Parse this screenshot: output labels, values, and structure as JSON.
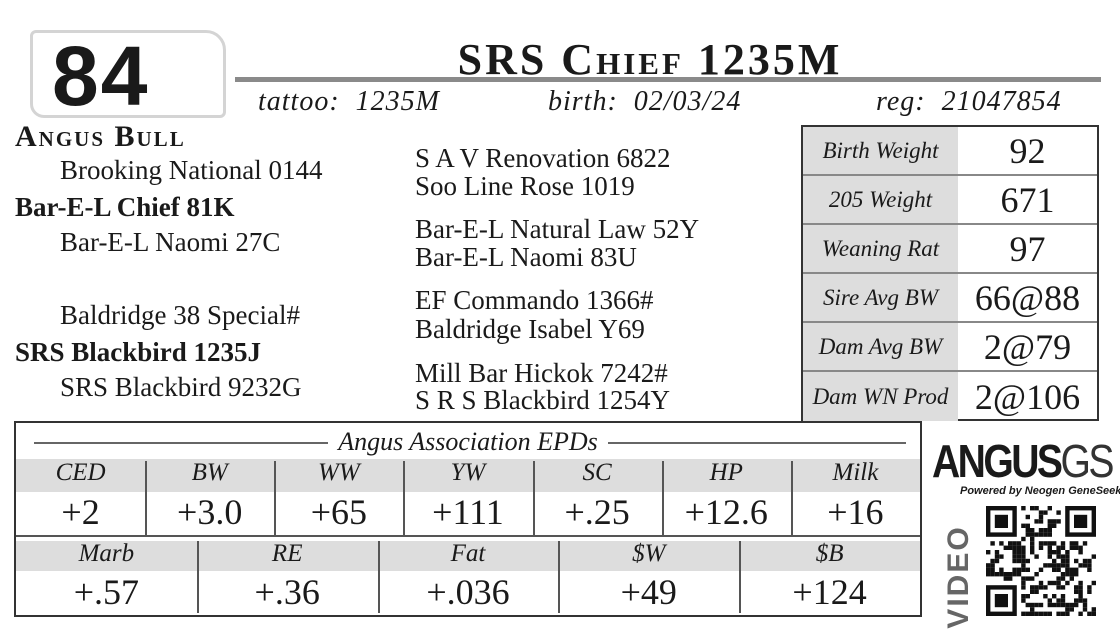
{
  "lot": "84",
  "title": "SRS Chief 1235M",
  "tattoo": {
    "label": "tattoo:",
    "value": "1235M"
  },
  "birth": {
    "label": "birth:",
    "value": "02/03/24"
  },
  "reg": {
    "label": "reg:",
    "value": "21047854"
  },
  "kind": "Angus Bull",
  "pedigree": {
    "sire_side": [
      "Brooking National 0144",
      "Bar-E-L Chief 81K",
      "Bar-E-L Naomi 27C"
    ],
    "dam_side": [
      "Baldridge 38 Special#",
      "SRS Blackbird 1235J",
      "SRS Blackbird 9232G"
    ],
    "ancestors": [
      "S A V Renovation 6822",
      "Soo Line Rose 1019",
      "Bar-E-L Natural Law 52Y",
      "Bar-E-L Naomi 83U",
      "EF Commando 1366#",
      "Baldridge Isabel Y69",
      "Mill Bar Hickok 7242#",
      "S R S Blackbird 1254Y"
    ]
  },
  "stats": [
    {
      "label": "Birth Weight",
      "value": "92"
    },
    {
      "label": "205 Weight",
      "value": "671"
    },
    {
      "label": "Weaning Rat",
      "value": "97"
    },
    {
      "label": "Sire Avg BW",
      "value": "66@88"
    },
    {
      "label": "Dam Avg BW",
      "value": "2@79"
    },
    {
      "label": "Dam WN Prod",
      "value": "2@106"
    }
  ],
  "epds": {
    "title": "Angus Association EPDs",
    "row1": {
      "headers": [
        "CED",
        "BW",
        "WW",
        "YW",
        "SC",
        "HP",
        "Milk"
      ],
      "values": [
        "+2",
        "+3.0",
        "+65",
        "+111",
        "+.25",
        "+12.6",
        "+16"
      ]
    },
    "row2": {
      "headers": [
        "Marb",
        "RE",
        "Fat",
        "$W",
        "$B"
      ],
      "values": [
        "+.57",
        "+.36",
        "+.036",
        "+49",
        "+124"
      ]
    }
  },
  "logo": {
    "brand": "ANGUS",
    "suffix": "GS",
    "tagline": "Powered by Neogen GeneSeek"
  },
  "video": "VIDEO"
}
